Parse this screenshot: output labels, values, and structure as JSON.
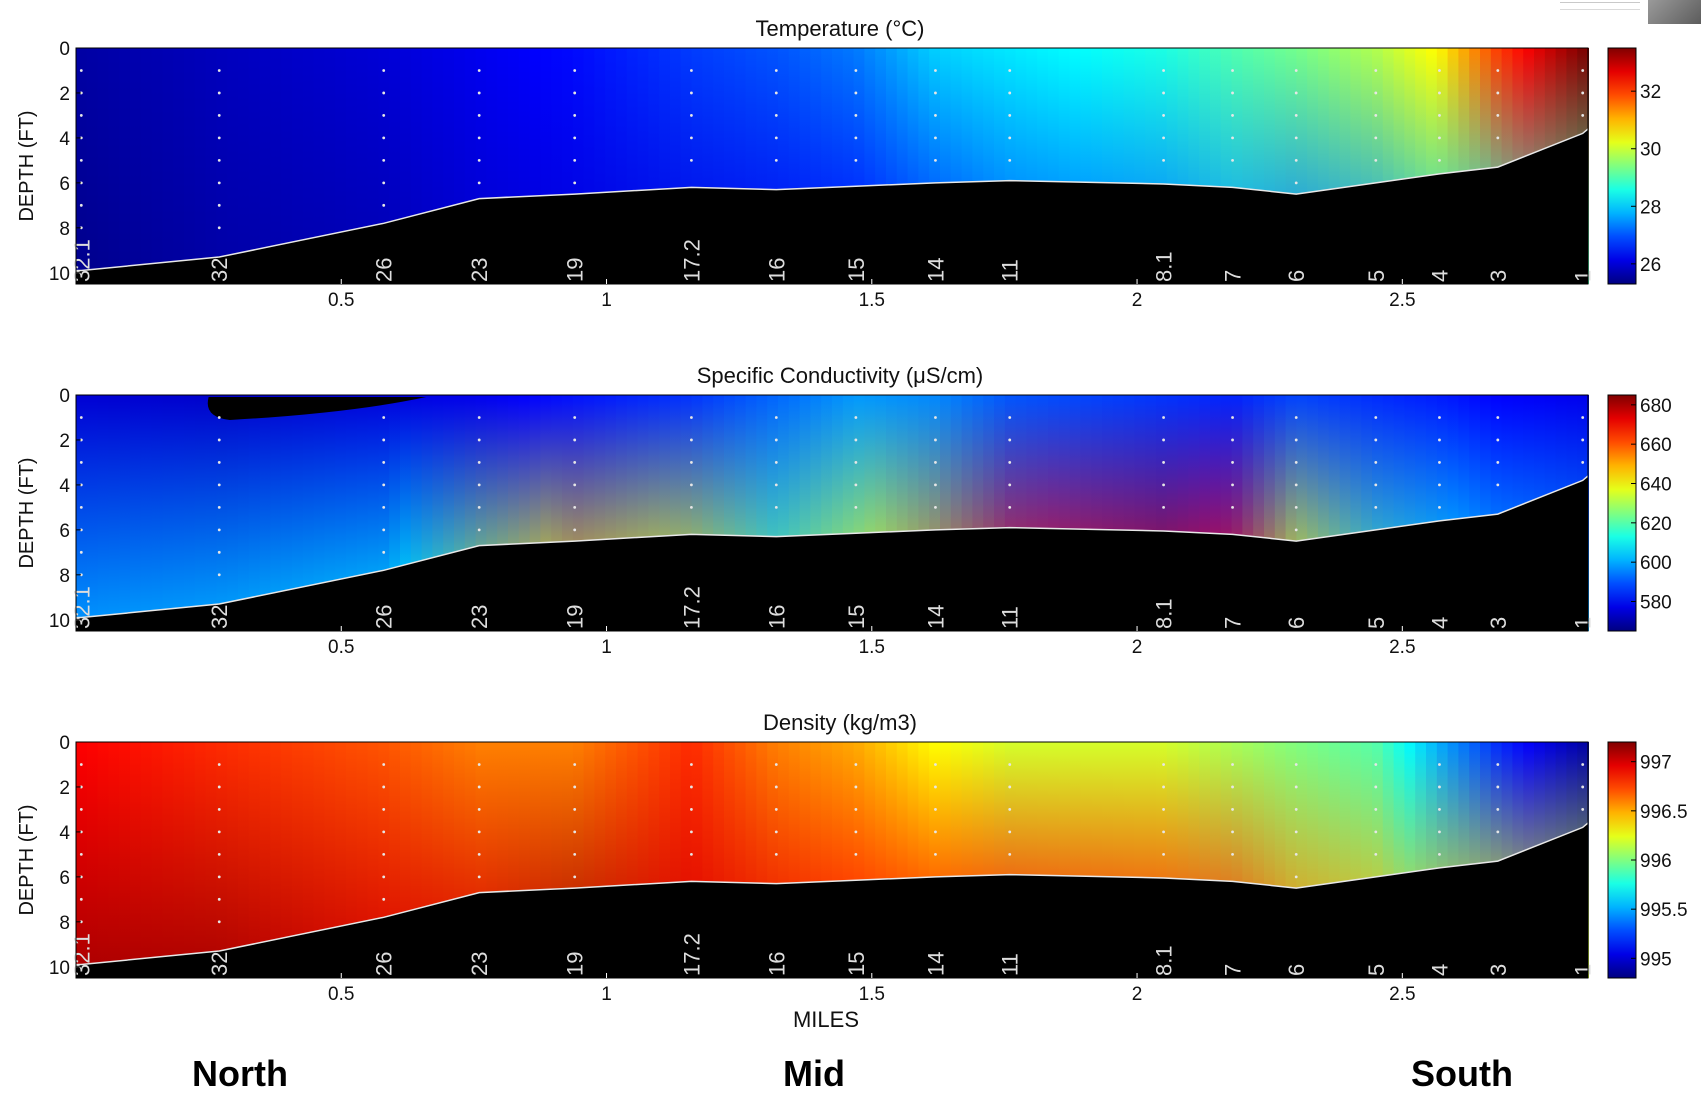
{
  "colors": {
    "water_high": "#b01a12",
    "water_low": "#1f3f9a",
    "bathymetry": "#000000",
    "bottom_line": "#e8e8e8"
  },
  "icons": [
    "usgs-logo-icon"
  ],
  "regions": {
    "north": "North",
    "mid": "Mid",
    "south": "South"
  },
  "chart_data": [
    {
      "type": "heatmap",
      "title": "Temperature (°C)",
      "ylabel": "DEPTH (FT)",
      "xlabel": "",
      "xlim": [
        0,
        2.85
      ],
      "ylim": [
        10.5,
        0
      ],
      "x_ticks": [
        "0.5",
        "1",
        "1.5",
        "2",
        "2.5"
      ],
      "y_ticks": [
        "0",
        "2",
        "4",
        "6",
        "8",
        "10"
      ],
      "colorbar": {
        "min": 25.3,
        "max": 33.5,
        "ticks": [
          "26",
          "28",
          "30",
          "32"
        ]
      },
      "stations": [
        "32.1",
        "32",
        "26",
        "23",
        "19",
        "17.2",
        "16",
        "15",
        "14",
        "11",
        "8.1",
        "7",
        "6",
        "5",
        "4",
        "3",
        "1"
      ],
      "station_miles": [
        0.01,
        0.27,
        0.58,
        0.76,
        0.94,
        1.16,
        1.32,
        1.47,
        1.62,
        1.76,
        2.05,
        2.18,
        2.3,
        2.45,
        2.57,
        2.68,
        2.84
      ],
      "bottom_depth": [
        9.9,
        9.3,
        7.8,
        6.7,
        6.5,
        6.2,
        6.3,
        6.15,
        6.0,
        5.9,
        6.05,
        6.2,
        6.5,
        6.0,
        5.6,
        5.3,
        3.8
      ],
      "surface_values": [
        25.6,
        25.8,
        26.0,
        26.2,
        26.4,
        26.8,
        27.0,
        27.3,
        28.0,
        28.2,
        28.6,
        29.0,
        29.3,
        29.8,
        30.5,
        32.0,
        33.5
      ],
      "bottom_values": [
        25.4,
        25.6,
        25.7,
        25.9,
        26.0,
        26.1,
        26.2,
        26.3,
        26.6,
        27.0,
        27.2,
        27.5,
        27.3,
        27.5,
        28.0,
        28.5,
        29.0
      ]
    },
    {
      "type": "heatmap",
      "title": "Specific Conductivity (μS/cm)",
      "ylabel": "DEPTH (FT)",
      "xlabel": "",
      "xlim": [
        0,
        2.85
      ],
      "ylim": [
        10.5,
        0
      ],
      "x_ticks": [
        "0.5",
        "1",
        "1.5",
        "2",
        "2.5"
      ],
      "y_ticks": [
        "0",
        "2",
        "4",
        "6",
        "8",
        "10"
      ],
      "colorbar": {
        "min": 565,
        "max": 685,
        "ticks": [
          "580",
          "600",
          "620",
          "640",
          "660",
          "680"
        ]
      },
      "stations": [
        "32.1",
        "32",
        "26",
        "23",
        "19",
        "17.2",
        "16",
        "15",
        "14",
        "11",
        "8.1",
        "7",
        "6",
        "5",
        "4",
        "3",
        "1"
      ],
      "station_miles": [
        0.01,
        0.27,
        0.58,
        0.76,
        0.94,
        1.16,
        1.32,
        1.47,
        1.62,
        1.76,
        2.05,
        2.18,
        2.3,
        2.45,
        2.57,
        2.68,
        2.84
      ],
      "bottom_depth": [
        9.9,
        9.3,
        7.8,
        6.7,
        6.5,
        6.2,
        6.3,
        6.15,
        6.0,
        5.9,
        6.05,
        6.2,
        6.5,
        6.0,
        5.6,
        5.3,
        3.8
      ],
      "surface_values": [
        575,
        574,
        576,
        578,
        582,
        586,
        592,
        598,
        596,
        590,
        586,
        584,
        588,
        585,
        583,
        580,
        578
      ],
      "bottom_values": [
        598,
        600,
        605,
        628,
        645,
        638,
        622,
        636,
        652,
        668,
        675,
        668,
        640,
        620,
        612,
        605,
        600
      ]
    },
    {
      "type": "heatmap",
      "title": "Density (kg/m3)",
      "ylabel": "DEPTH (FT)",
      "xlabel": "MILES",
      "xlim": [
        0,
        2.85
      ],
      "ylim": [
        10.5,
        0
      ],
      "x_ticks": [
        "0.5",
        "1",
        "1.5",
        "2",
        "2.5"
      ],
      "y_ticks": [
        "0",
        "2",
        "4",
        "6",
        "8",
        "10"
      ],
      "colorbar": {
        "min": 994.8,
        "max": 997.2,
        "ticks": [
          "995",
          "995.5",
          "996",
          "996.5",
          "997"
        ]
      },
      "stations": [
        "32.1",
        "32",
        "26",
        "23",
        "19",
        "17.2",
        "16",
        "15",
        "14",
        "11",
        "8.1",
        "7",
        "6",
        "5",
        "4",
        "3",
        "1"
      ],
      "station_miles": [
        0.01,
        0.27,
        0.58,
        0.76,
        0.94,
        1.16,
        1.32,
        1.47,
        1.62,
        1.76,
        2.05,
        2.18,
        2.3,
        2.45,
        2.57,
        2.68,
        2.84
      ],
      "bottom_depth": [
        9.9,
        9.3,
        7.8,
        6.7,
        6.5,
        6.2,
        6.3,
        6.15,
        6.0,
        5.9,
        6.05,
        6.2,
        6.5,
        6.0,
        5.6,
        5.3,
        3.8
      ],
      "surface_values": [
        996.9,
        996.8,
        996.7,
        996.6,
        996.6,
        996.8,
        996.6,
        996.5,
        996.3,
        996.2,
        996.2,
        996.1,
        996.0,
        995.9,
        995.5,
        995.2,
        994.9
      ],
      "bottom_values": [
        997.1,
        997.1,
        997.0,
        997.0,
        997.1,
        997.0,
        996.95,
        996.9,
        996.9,
        996.9,
        996.85,
        996.8,
        996.6,
        996.5,
        996.4,
        996.3,
        996.2
      ]
    }
  ]
}
